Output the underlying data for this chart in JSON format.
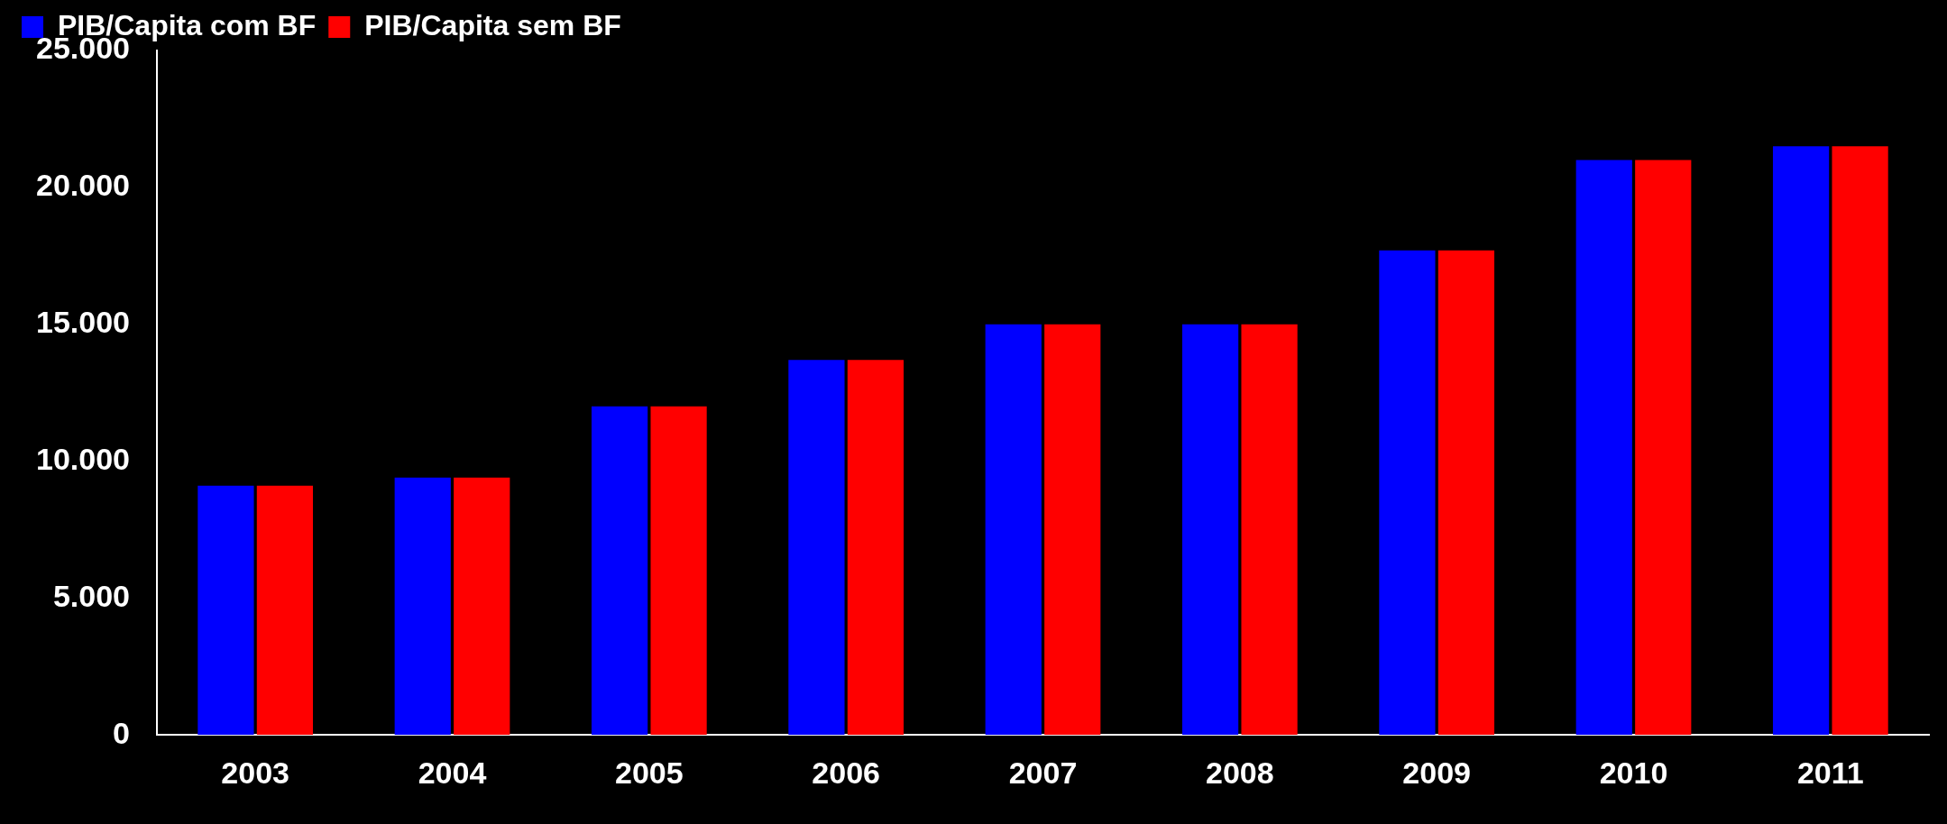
{
  "chart_data": {
    "type": "bar",
    "categories": [
      "2003",
      "2004",
      "2005",
      "2006",
      "2007",
      "2008",
      "2009",
      "2010",
      "2011"
    ],
    "series": [
      {
        "name": "PIB/Capita com BF",
        "color": "#0000ff",
        "values": [
          9100,
          9400,
          12000,
          13700,
          15000,
          15000,
          17700,
          21000,
          21500
        ]
      },
      {
        "name": "PIB/Capita sem BF",
        "color": "#ff0000",
        "values": [
          9100,
          9400,
          12000,
          13700,
          15000,
          15000,
          17700,
          21000,
          21500
        ]
      }
    ],
    "ylim": [
      0,
      25000
    ],
    "yticks": [
      0,
      {
        "value": 5000,
        "label": "5.000"
      },
      {
        "value": 10000,
        "label": "10.000"
      },
      {
        "value": 15000,
        "label": "15.000"
      },
      {
        "value": 20000,
        "label": "20.000"
      },
      {
        "value": 25000,
        "label": "25.000"
      }
    ],
    "grid": false,
    "legend": "top left"
  }
}
